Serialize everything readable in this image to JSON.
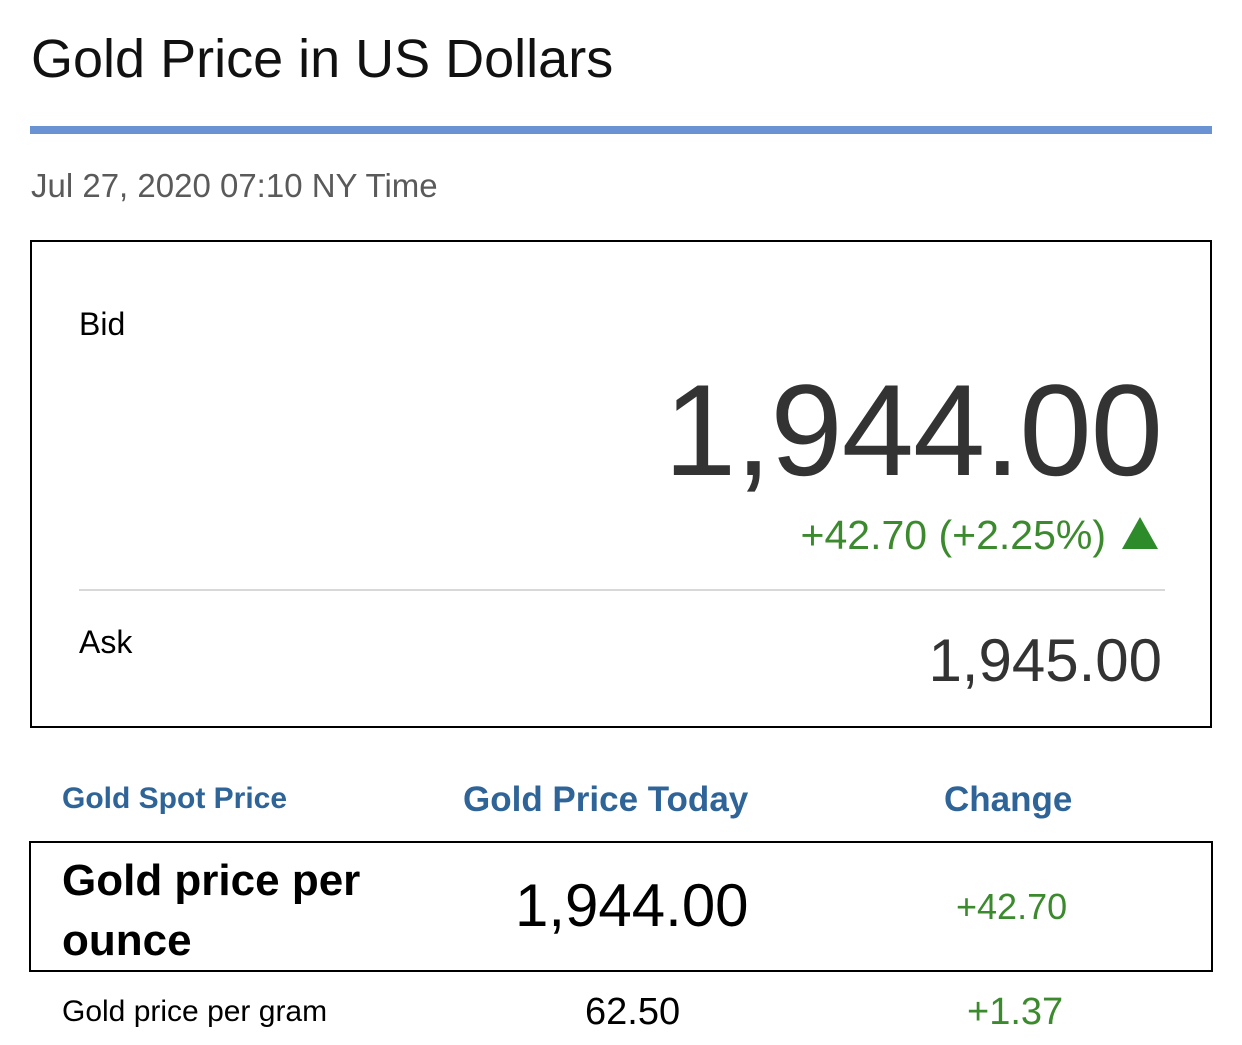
{
  "header": {
    "title": "Gold Price in US Dollars",
    "timestamp": "Jul 27, 2020 07:10 NY Time"
  },
  "quote": {
    "bid_label": "Bid",
    "bid_value": "1,944.00",
    "change_text": "+42.70 (+2.25%)",
    "trend_icon": "up-arrow-icon",
    "ask_label": "Ask",
    "ask_value": "1,945.00"
  },
  "table": {
    "headers": [
      "Gold Spot Price",
      "Gold Price Today",
      "Change"
    ],
    "rows": [
      {
        "label": "Gold price per ounce",
        "price": "1,944.00",
        "change": "+42.70"
      },
      {
        "label": "Gold price per gram",
        "price": "62.50",
        "change": "+1.37"
      }
    ]
  },
  "colors": {
    "accent_rule": "#6a93d4",
    "header_blue": "#2f6498",
    "positive_green": "#3c8a2e"
  }
}
